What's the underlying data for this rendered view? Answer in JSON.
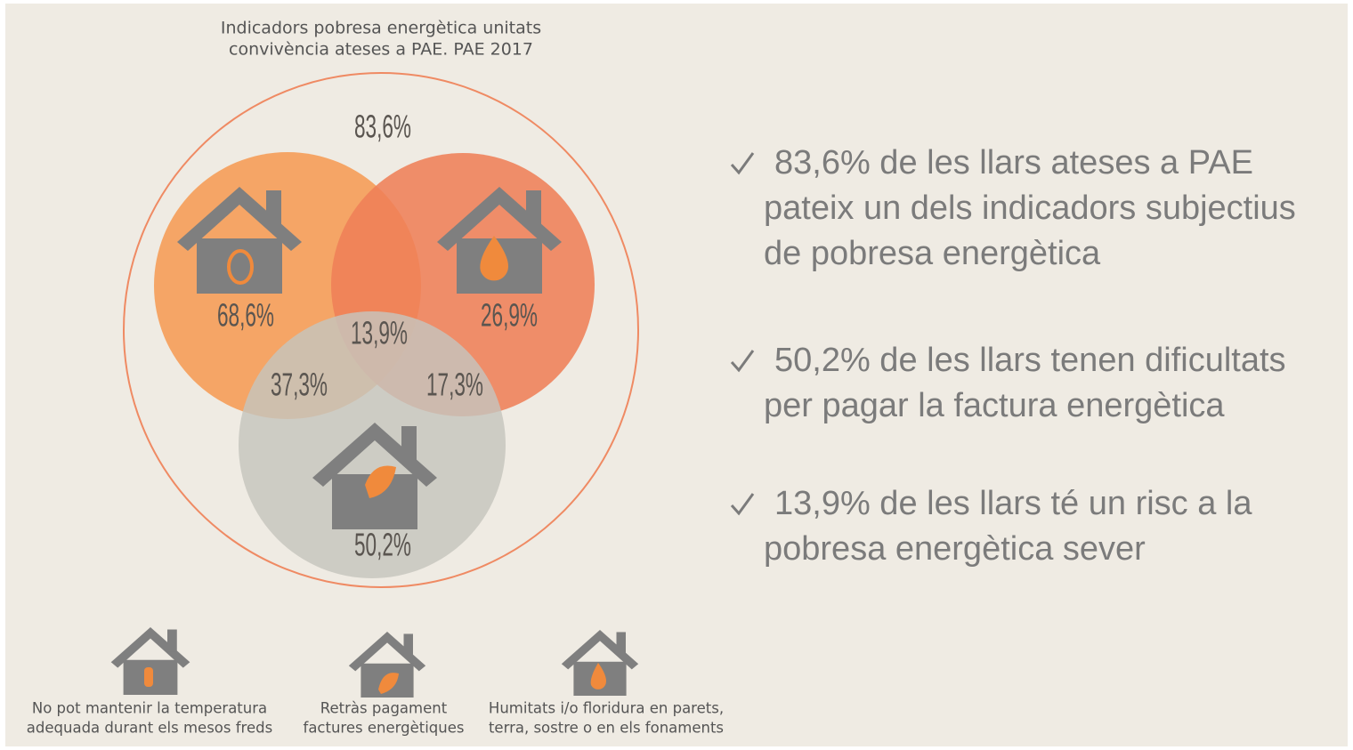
{
  "title": [
    "Indicadors pobresa energètica unitats",
    "convivència ateses a PAE. PAE 2017"
  ],
  "venn": {
    "total": "83,6%",
    "temperature": "68,6%",
    "humidity": "26,9%",
    "all_three": "13,9%",
    "temperature_payment": "37,3%",
    "humidity_payment": "17,3%",
    "payment": "50,2%"
  },
  "bullets": [
    [
      "83,6% de les llars ateses a PAE",
      "pateix un dels indicadors subjectius",
      "de pobresa energètica"
    ],
    [
      "50,2% de les llars tenen dificultats",
      "per pagar la factura energètica"
    ],
    [
      "13,9% de les llars té un risc a la",
      "pobresa energètica sever"
    ]
  ],
  "legend": [
    [
      "No pot mantenir la temperatura",
      "adequada durant els mesos freds"
    ],
    [
      "Retràs pagament",
      "factures energètiques"
    ],
    [
      "Humitats i/o floridura en parets,",
      "terra, sostre o en els fonaments"
    ]
  ]
}
